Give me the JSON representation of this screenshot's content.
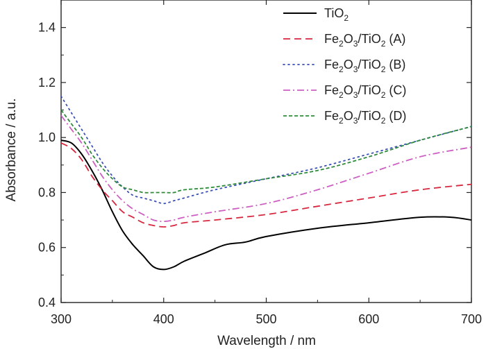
{
  "chart_data": {
    "type": "line",
    "title": "",
    "xlabel": "Wavelength / nm",
    "ylabel": "Absorbance / a.u.",
    "xlim": [
      300,
      700
    ],
    "ylim": [
      0.4,
      1.5
    ],
    "xticks": [
      300,
      400,
      500,
      600,
      700
    ],
    "yticks": [
      0.4,
      0.6,
      0.8,
      1.0,
      1.2,
      1.4
    ],
    "xtick_labels": [
      "300",
      "400",
      "500",
      "600",
      "700"
    ],
    "ytick_labels": [
      "0.4",
      "0.6",
      "0.8",
      "1.0",
      "1.2",
      "1.4"
    ],
    "grid": false,
    "legend_position": "top-right",
    "series": [
      {
        "name": "TiO2",
        "legend": {
          "parts": [
            [
              "TiO",
              false
            ],
            [
              "2",
              true
            ]
          ]
        },
        "color": "#000000",
        "style": "solid",
        "x": [
          300,
          310,
          320,
          330,
          340,
          350,
          360,
          370,
          380,
          390,
          400,
          410,
          420,
          440,
          460,
          480,
          500,
          550,
          600,
          650,
          680,
          700
        ],
        "y": [
          0.99,
          0.98,
          0.94,
          0.88,
          0.81,
          0.73,
          0.66,
          0.61,
          0.57,
          0.53,
          0.52,
          0.53,
          0.55,
          0.58,
          0.61,
          0.62,
          0.64,
          0.67,
          0.69,
          0.71,
          0.71,
          0.7
        ]
      },
      {
        "name": "Fe2O3/TiO2 (A)",
        "legend": {
          "parts": [
            [
              "Fe",
              false
            ],
            [
              "2",
              true
            ],
            [
              "O",
              false
            ],
            [
              "3",
              true
            ],
            [
              "/TiO",
              false
            ],
            [
              "2",
              true
            ],
            [
              " (A)",
              false
            ]
          ]
        },
        "color": "#d7263d",
        "style": "dashed",
        "x": [
          300,
          310,
          320,
          330,
          340,
          350,
          360,
          370,
          380,
          390,
          400,
          410,
          420,
          450,
          500,
          550,
          600,
          650,
          700
        ],
        "y": [
          0.98,
          0.96,
          0.92,
          0.86,
          0.81,
          0.77,
          0.73,
          0.71,
          0.69,
          0.68,
          0.675,
          0.68,
          0.69,
          0.7,
          0.72,
          0.75,
          0.78,
          0.81,
          0.83
        ]
      },
      {
        "name": "Fe2O3/TiO2 (B)",
        "legend": {
          "parts": [
            [
              "Fe",
              false
            ],
            [
              "2",
              true
            ],
            [
              "O",
              false
            ],
            [
              "3",
              true
            ],
            [
              "/TiO",
              false
            ],
            [
              "2",
              true
            ],
            [
              " (B)",
              false
            ]
          ]
        },
        "color": "#3a4fb5",
        "style": "dotted",
        "x": [
          300,
          310,
          320,
          330,
          340,
          350,
          360,
          370,
          380,
          390,
          400,
          410,
          420,
          450,
          500,
          550,
          600,
          650,
          700
        ],
        "y": [
          1.15,
          1.09,
          1.03,
          0.97,
          0.91,
          0.86,
          0.82,
          0.79,
          0.78,
          0.77,
          0.76,
          0.77,
          0.78,
          0.81,
          0.85,
          0.89,
          0.94,
          0.99,
          1.04
        ]
      },
      {
        "name": "Fe2O3/TiO2 (C)",
        "legend": {
          "parts": [
            [
              "Fe",
              false
            ],
            [
              "2",
              true
            ],
            [
              "O",
              false
            ],
            [
              "3",
              true
            ],
            [
              "/TiO",
              false
            ],
            [
              "2",
              true
            ],
            [
              " (C)",
              false
            ]
          ]
        },
        "color": "#cc5fc1",
        "style": "dashdot",
        "x": [
          300,
          310,
          320,
          330,
          340,
          350,
          360,
          370,
          380,
          390,
          400,
          410,
          420,
          450,
          500,
          550,
          600,
          650,
          700
        ],
        "y": [
          1.08,
          1.03,
          0.98,
          0.92,
          0.86,
          0.81,
          0.77,
          0.74,
          0.72,
          0.7,
          0.695,
          0.7,
          0.71,
          0.73,
          0.76,
          0.81,
          0.87,
          0.93,
          0.965
        ]
      },
      {
        "name": "Fe2O3/TiO2 (D)",
        "legend": {
          "parts": [
            [
              "Fe",
              false
            ],
            [
              "2",
              true
            ],
            [
              "O",
              false
            ],
            [
              "3",
              true
            ],
            [
              "/TiO",
              false
            ],
            [
              "2",
              true
            ],
            [
              " (D)",
              false
            ]
          ]
        },
        "color": "#2f8a3a",
        "style": "shortdash",
        "x": [
          300,
          310,
          320,
          330,
          340,
          350,
          360,
          370,
          380,
          390,
          400,
          410,
          420,
          450,
          500,
          550,
          600,
          650,
          700
        ],
        "y": [
          1.1,
          1.05,
          1.0,
          0.94,
          0.89,
          0.85,
          0.82,
          0.81,
          0.8,
          0.8,
          0.8,
          0.8,
          0.81,
          0.82,
          0.85,
          0.88,
          0.93,
          0.99,
          1.04
        ]
      }
    ]
  }
}
